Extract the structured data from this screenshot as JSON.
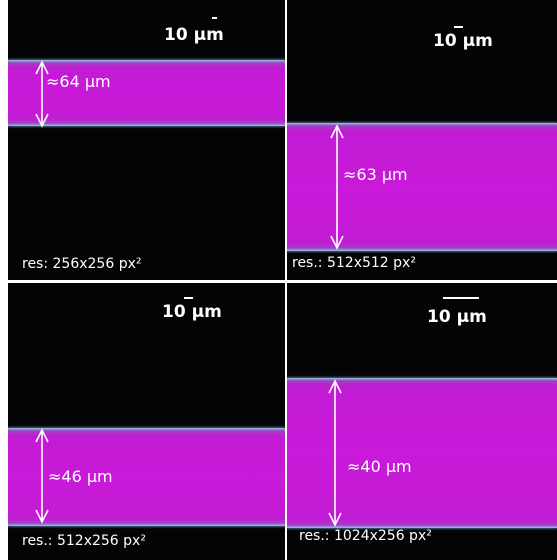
{
  "panels": [
    {
      "scale_label": "10 µm",
      "measurement": "≈64 µm",
      "resolution": "res: 256x256 px²"
    },
    {
      "scale_label": "10 µm",
      "measurement": "≈63 µm",
      "resolution": "res.: 512x512 px²"
    },
    {
      "scale_label": "10 µm",
      "measurement": "≈46 µm",
      "resolution": "res.: 512x256 px²"
    },
    {
      "scale_label": "10 µm",
      "measurement": "≈40 µm",
      "resolution": "res.: 1024x256 px²"
    }
  ],
  "colors": {
    "background": "#040306",
    "channel": "#c81ad8",
    "edge": "#8fc4e6",
    "divider": "#ffffff"
  }
}
